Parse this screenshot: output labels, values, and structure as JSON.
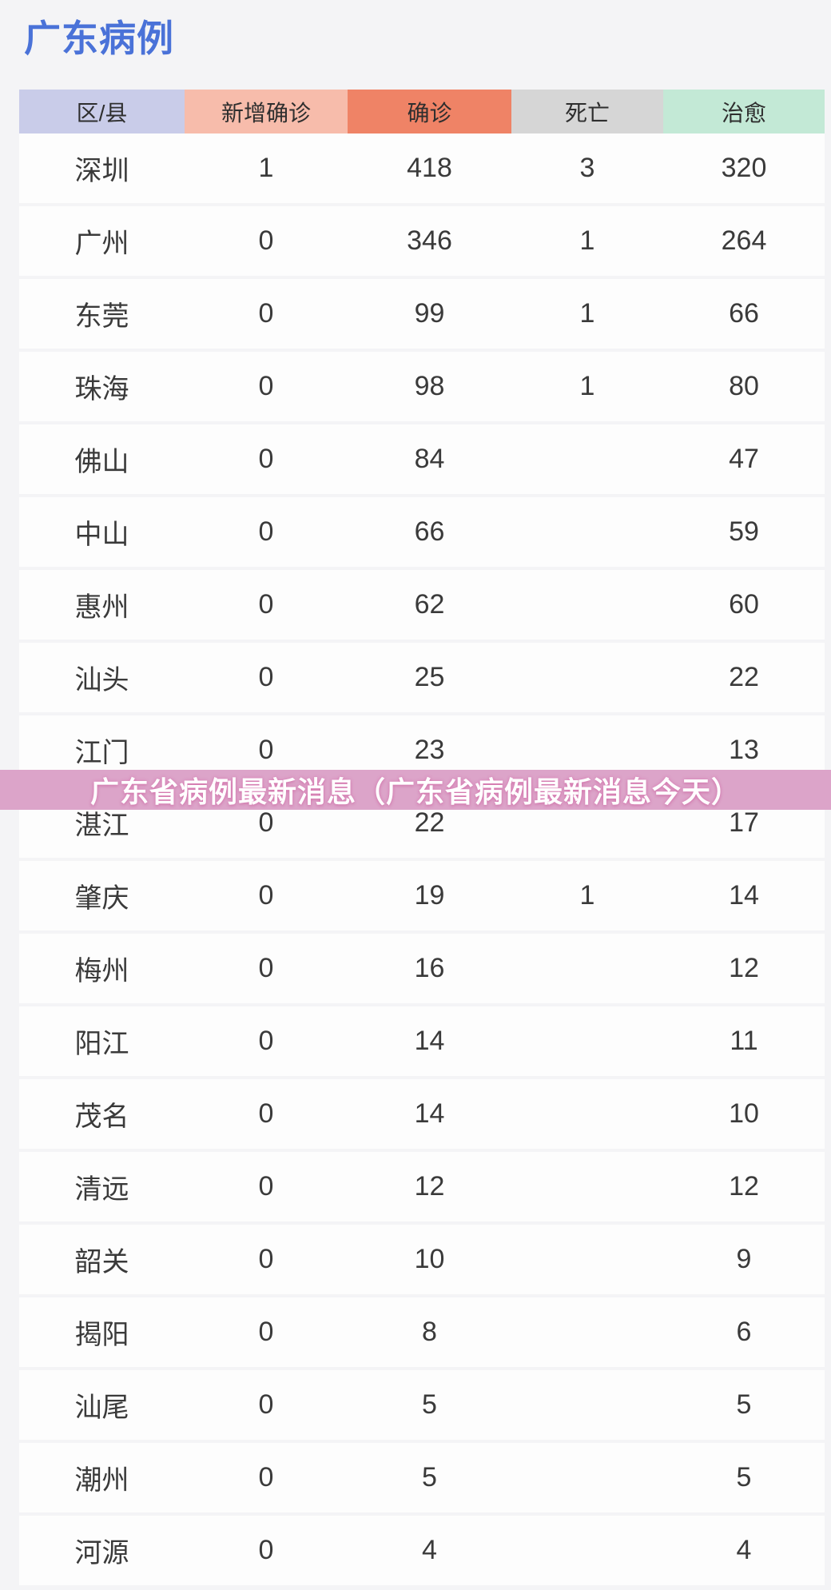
{
  "page": {
    "title": "广东病例",
    "title_color": "#4a72d8",
    "background": "#f4f4f6"
  },
  "table": {
    "columns": [
      {
        "label": "区/县",
        "bg": "#c9cce9"
      },
      {
        "label": "新增确诊",
        "bg": "#f7bcab"
      },
      {
        "label": "确诊",
        "bg": "#ef8366"
      },
      {
        "label": "死亡",
        "bg": "#d6d6d6"
      },
      {
        "label": "治愈",
        "bg": "#c3e9d6"
      }
    ],
    "rows": [
      {
        "region": "深圳",
        "new_confirmed": "1",
        "confirmed": "418",
        "deaths": "3",
        "cured": "320"
      },
      {
        "region": "广州",
        "new_confirmed": "0",
        "confirmed": "346",
        "deaths": "1",
        "cured": "264"
      },
      {
        "region": "东莞",
        "new_confirmed": "0",
        "confirmed": "99",
        "deaths": "1",
        "cured": "66"
      },
      {
        "region": "珠海",
        "new_confirmed": "0",
        "confirmed": "98",
        "deaths": "1",
        "cured": "80"
      },
      {
        "region": "佛山",
        "new_confirmed": "0",
        "confirmed": "84",
        "deaths": "",
        "cured": "47"
      },
      {
        "region": "中山",
        "new_confirmed": "0",
        "confirmed": "66",
        "deaths": "",
        "cured": "59"
      },
      {
        "region": "惠州",
        "new_confirmed": "0",
        "confirmed": "62",
        "deaths": "",
        "cured": "60"
      },
      {
        "region": "汕头",
        "new_confirmed": "0",
        "confirmed": "25",
        "deaths": "",
        "cured": "22"
      },
      {
        "region": "江门",
        "new_confirmed": "0",
        "confirmed": "23",
        "deaths": "",
        "cured": "13"
      },
      {
        "region": "湛江",
        "new_confirmed": "0",
        "confirmed": "22",
        "deaths": "",
        "cured": "17"
      },
      {
        "region": "肇庆",
        "new_confirmed": "0",
        "confirmed": "19",
        "deaths": "1",
        "cured": "14"
      },
      {
        "region": "梅州",
        "new_confirmed": "0",
        "confirmed": "16",
        "deaths": "",
        "cured": "12"
      },
      {
        "region": "阳江",
        "new_confirmed": "0",
        "confirmed": "14",
        "deaths": "",
        "cured": "11"
      },
      {
        "region": "茂名",
        "new_confirmed": "0",
        "confirmed": "14",
        "deaths": "",
        "cured": "10"
      },
      {
        "region": "清远",
        "new_confirmed": "0",
        "confirmed": "12",
        "deaths": "",
        "cured": "12"
      },
      {
        "region": "韶关",
        "new_confirmed": "0",
        "confirmed": "10",
        "deaths": "",
        "cured": "9"
      },
      {
        "region": "揭阳",
        "new_confirmed": "0",
        "confirmed": "8",
        "deaths": "",
        "cured": "6"
      },
      {
        "region": "汕尾",
        "new_confirmed": "0",
        "confirmed": "5",
        "deaths": "",
        "cured": "5"
      },
      {
        "region": "潮州",
        "new_confirmed": "0",
        "confirmed": "5",
        "deaths": "",
        "cured": "5"
      },
      {
        "region": "河源",
        "new_confirmed": "0",
        "confirmed": "4",
        "deaths": "",
        "cured": "4"
      }
    ]
  },
  "overlay_banner": {
    "text": "广东省病例最新消息（广东省病例最新消息今天）",
    "background": "#dca4c9",
    "text_color": "#ffffff"
  }
}
